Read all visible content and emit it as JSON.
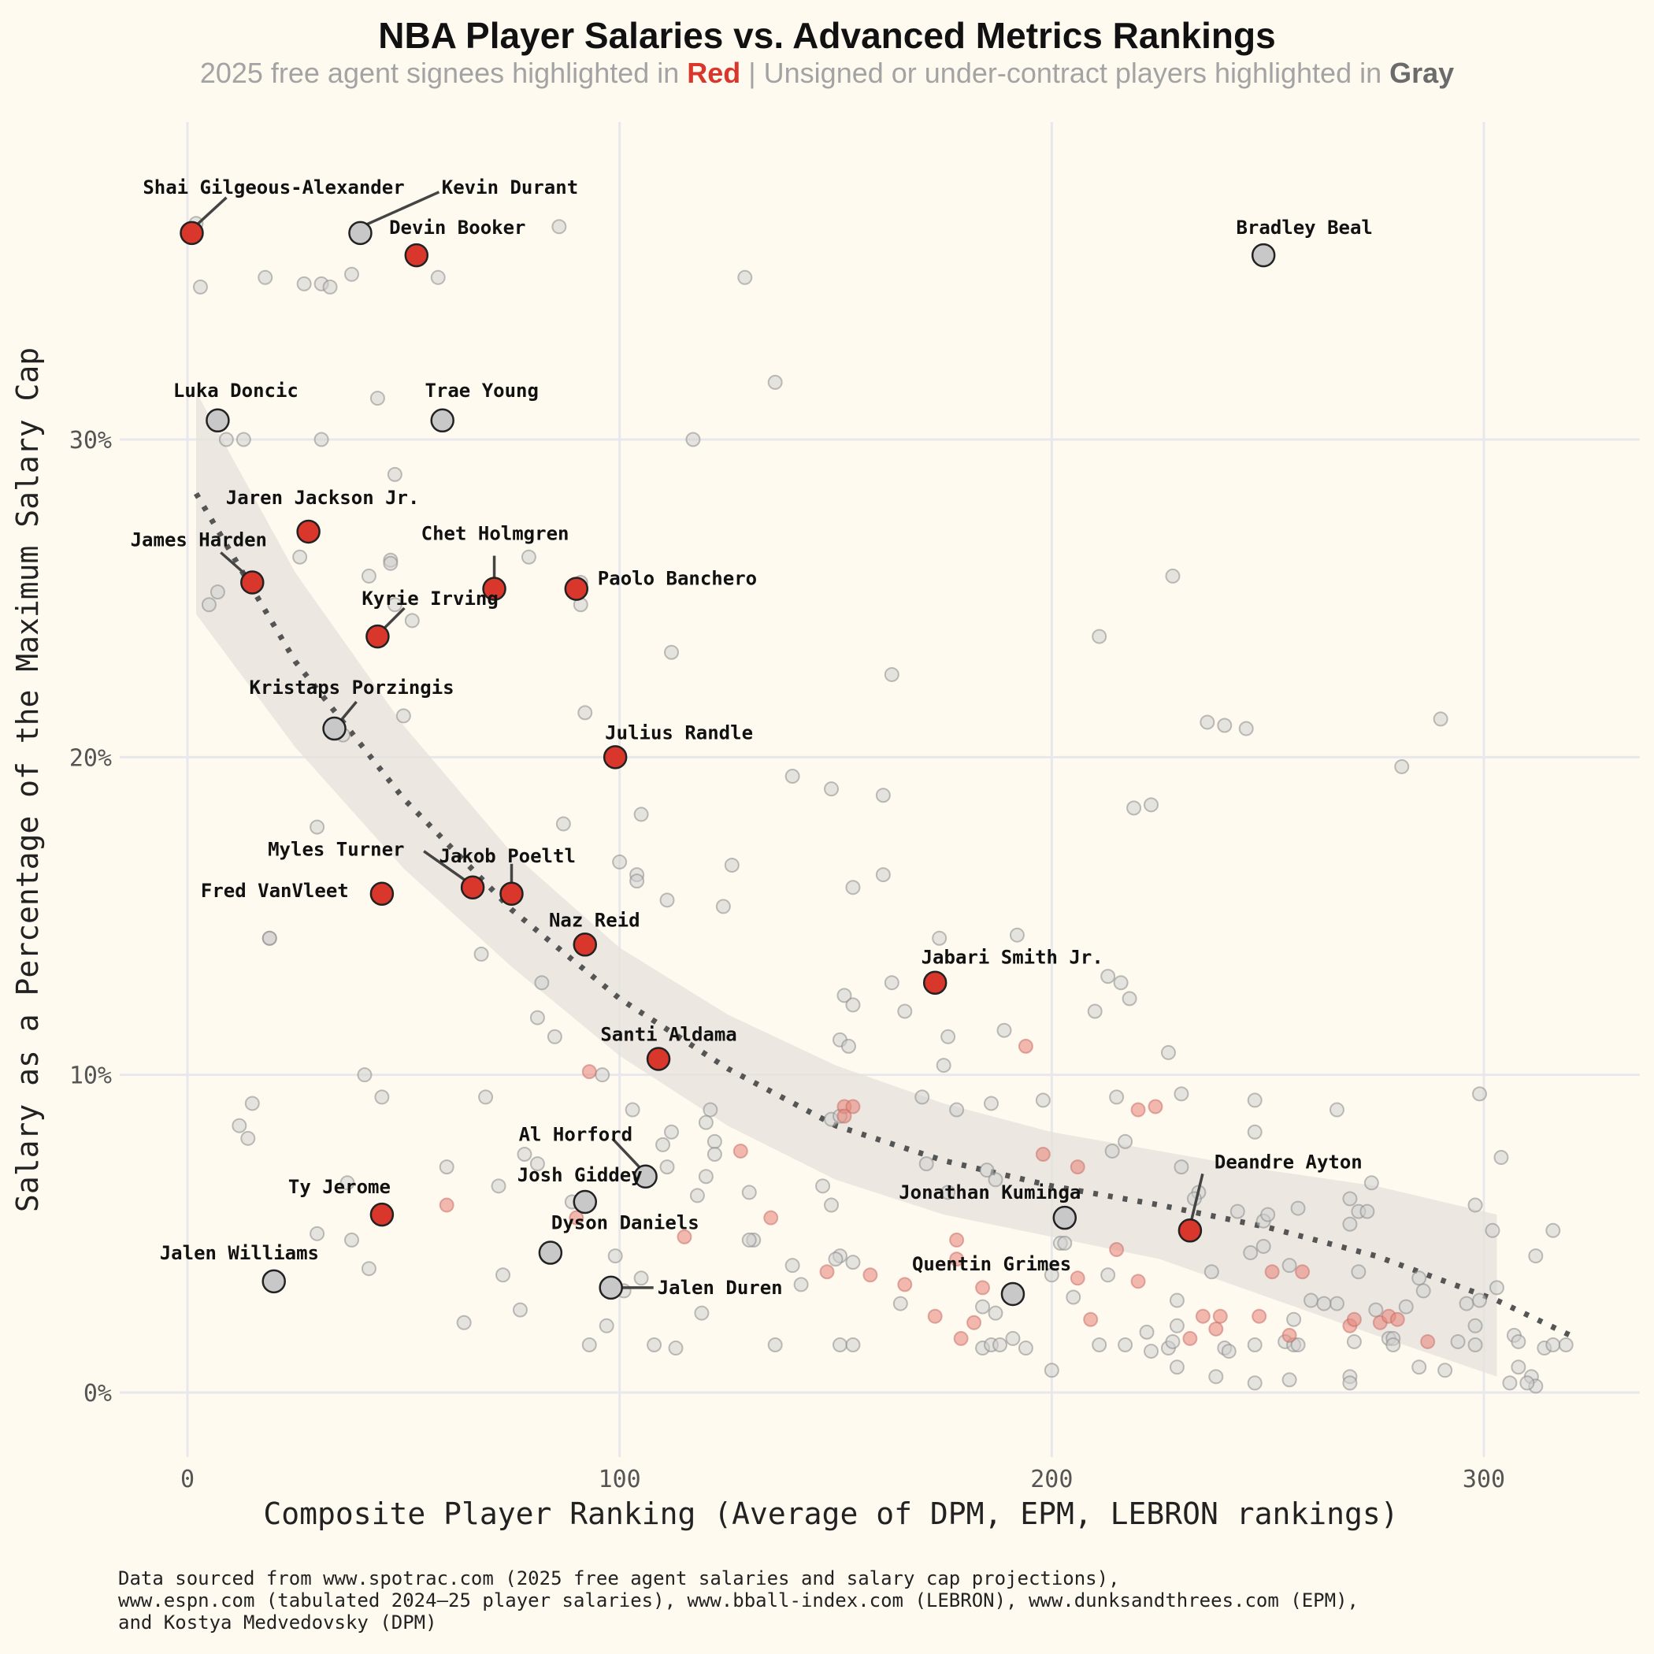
{
  "title": "NBA Player Salaries vs. Advanced Metrics Rankings",
  "subtitle": {
    "prefix": "2025 free agent signees highlighted in ",
    "red_word": "Red",
    "middle": " | Unsigned or under-contract players highlighted in ",
    "gray_word": "Gray"
  },
  "caption": [
    "Data sourced from www.spotrac.com (2025 free agent salaries and salary cap projections),",
    "www.espn.com (tabulated 2024–25 player salaries), www.bball-index.com (LEBRON), www.dunksandthrees.com (EPM),",
    "and Kostya Medvedovsky (DPM)"
  ],
  "colors": {
    "background": "#fffaf0",
    "red": "#d9372b",
    "gray": "#c8c8c8",
    "grid": "#e8e8ec",
    "trend": "#555555",
    "band": "#e6e2dc"
  },
  "chart_data": {
    "type": "scatter",
    "xlabel": "Composite Player Ranking (Average of DPM, EPM, LEBRON rankings)",
    "ylabel": "Salary as a Percentage of the Maximum Salary Cap",
    "xlim": [
      -15,
      335
    ],
    "ylim": [
      -2.5,
      40
    ],
    "xticks": [
      0,
      100,
      200,
      300
    ],
    "yticks": [
      0,
      10,
      20,
      30
    ],
    "ytick_labels": [
      "0%",
      "10%",
      "20%",
      "30%"
    ],
    "grid": true,
    "trend": {
      "type": "loess",
      "x": [
        2,
        25,
        50,
        75,
        100,
        125,
        150,
        175,
        200,
        225,
        250,
        275,
        303,
        320
      ],
      "y": [
        28.3,
        23.0,
        18.7,
        15.2,
        12.4,
        10.2,
        8.4,
        7.3,
        6.5,
        5.9,
        5.2,
        4.3,
        2.9,
        1.8
      ],
      "band_x": [
        2,
        25,
        50,
        75,
        100,
        125,
        150,
        175,
        200,
        225,
        250,
        275,
        303
      ],
      "band_lower": [
        24.5,
        20.3,
        16.5,
        13.4,
        10.6,
        8.4,
        6.7,
        5.6,
        4.9,
        4.2,
        3.0,
        1.8,
        0.5
      ],
      "band_upper": [
        31.5,
        25.8,
        21.0,
        17.0,
        14.0,
        11.9,
        10.3,
        9.1,
        8.2,
        7.6,
        7.0,
        6.5,
        5.6
      ]
    },
    "highlighted": [
      {
        "name": "Shai Gilgeous-Alexander",
        "x": 1,
        "y": 36.5,
        "group": "red"
      },
      {
        "name": "Kevin Durant",
        "x": 40,
        "y": 36.5,
        "group": "gray"
      },
      {
        "name": "Devin Booker",
        "x": 53,
        "y": 35.8,
        "group": "red"
      },
      {
        "name": "Bradley Beal",
        "x": 249,
        "y": 35.8,
        "group": "gray"
      },
      {
        "name": "Luka Doncic",
        "x": 7,
        "y": 30.6,
        "group": "gray"
      },
      {
        "name": "Trae Young",
        "x": 59,
        "y": 30.6,
        "group": "gray"
      },
      {
        "name": "Jaren Jackson Jr.",
        "x": 28,
        "y": 27.1,
        "group": "red"
      },
      {
        "name": "James Harden",
        "x": 15,
        "y": 25.5,
        "group": "red"
      },
      {
        "name": "Chet Holmgren",
        "x": 71,
        "y": 25.3,
        "group": "red"
      },
      {
        "name": "Paolo Banchero",
        "x": 90,
        "y": 25.3,
        "group": "red"
      },
      {
        "name": "Kyrie Irving",
        "x": 44,
        "y": 23.8,
        "group": "red"
      },
      {
        "name": "Kristaps Porzingis",
        "x": 34,
        "y": 20.9,
        "group": "gray"
      },
      {
        "name": "Julius Randle",
        "x": 99,
        "y": 20.0,
        "group": "red"
      },
      {
        "name": "Myles Turner",
        "x": 66,
        "y": 15.9,
        "group": "red"
      },
      {
        "name": "Jakob Poeltl",
        "x": 75,
        "y": 15.7,
        "group": "red"
      },
      {
        "name": "Fred VanVleet",
        "x": 45,
        "y": 15.7,
        "group": "red"
      },
      {
        "name": "Naz Reid",
        "x": 92,
        "y": 14.1,
        "group": "red"
      },
      {
        "name": "Jabari Smith Jr.",
        "x": 173,
        "y": 12.9,
        "group": "red"
      },
      {
        "name": "Santi Aldama",
        "x": 109,
        "y": 10.5,
        "group": "red"
      },
      {
        "name": "Al Horford",
        "x": 106,
        "y": 6.8,
        "group": "gray"
      },
      {
        "name": "Deandre Ayton",
        "x": 232,
        "y": 5.1,
        "group": "red"
      },
      {
        "name": "Jonathan Kuminga",
        "x": 203,
        "y": 5.5,
        "group": "gray"
      },
      {
        "name": "Josh Giddey",
        "x": 92,
        "y": 6.0,
        "group": "gray"
      },
      {
        "name": "Ty Jerome",
        "x": 45,
        "y": 5.6,
        "group": "red"
      },
      {
        "name": "Dyson Daniels",
        "x": 84,
        "y": 4.4,
        "group": "gray"
      },
      {
        "name": "Jalen Williams",
        "x": 20,
        "y": 3.5,
        "group": "gray"
      },
      {
        "name": "Jalen Duren",
        "x": 98,
        "y": 3.3,
        "group": "gray"
      },
      {
        "name": "Quentin Grimes",
        "x": 191,
        "y": 3.1,
        "group": "gray"
      }
    ],
    "background_points": {
      "gray": [
        [
          2,
          36.8
        ],
        [
          3,
          34.8
        ],
        [
          18,
          35.1
        ],
        [
          27,
          34.9
        ],
        [
          31,
          34.9
        ],
        [
          33,
          34.8
        ],
        [
          38,
          35.2
        ],
        [
          58,
          35.1
        ],
        [
          86,
          36.7
        ],
        [
          129,
          35.1
        ],
        [
          136,
          31.8
        ],
        [
          44,
          31.3
        ],
        [
          9,
          30.0
        ],
        [
          13,
          30.0
        ],
        [
          31,
          30.0
        ],
        [
          117,
          30.0
        ],
        [
          48,
          28.9
        ],
        [
          26,
          26.3
        ],
        [
          79,
          26.3
        ],
        [
          47,
          26.2
        ],
        [
          47,
          26.1
        ],
        [
          42,
          25.7
        ],
        [
          7,
          25.2
        ],
        [
          5,
          24.8
        ],
        [
          91,
          25.5
        ],
        [
          91,
          24.8
        ],
        [
          48,
          24.8
        ],
        [
          52,
          24.3
        ],
        [
          228,
          25.7
        ],
        [
          112,
          23.3
        ],
        [
          163,
          22.6
        ],
        [
          211,
          23.8
        ],
        [
          92,
          21.4
        ],
        [
          50,
          21.3
        ],
        [
          36,
          20.7
        ],
        [
          236,
          21.1
        ],
        [
          240,
          21.0
        ],
        [
          245,
          20.9
        ],
        [
          290,
          21.2
        ],
        [
          281,
          19.7
        ],
        [
          140,
          19.4
        ],
        [
          149,
          19.0
        ],
        [
          161,
          18.8
        ],
        [
          219,
          18.4
        ],
        [
          223,
          18.5
        ],
        [
          105,
          18.2
        ],
        [
          87,
          17.9
        ],
        [
          30,
          17.8
        ],
        [
          100,
          16.7
        ],
        [
          104,
          16.3
        ],
        [
          104,
          16.1
        ],
        [
          126,
          16.6
        ],
        [
          161,
          16.3
        ],
        [
          154,
          15.9
        ],
        [
          111,
          15.5
        ],
        [
          124,
          15.3
        ],
        [
          19,
          14.3
        ],
        [
          19,
          14.3
        ],
        [
          68,
          13.8
        ],
        [
          174,
          14.3
        ],
        [
          192,
          14.4
        ],
        [
          82,
          12.9
        ],
        [
          163,
          12.9
        ],
        [
          213,
          13.1
        ],
        [
          216,
          12.9
        ],
        [
          218,
          12.4
        ],
        [
          152,
          12.5
        ],
        [
          154,
          12.2
        ],
        [
          166,
          12.0
        ],
        [
          210,
          12.0
        ],
        [
          81,
          11.8
        ],
        [
          85,
          11.2
        ],
        [
          176,
          11.2
        ],
        [
          189,
          11.4
        ],
        [
          151,
          11.1
        ],
        [
          153,
          10.9
        ],
        [
          227,
          10.7
        ],
        [
          175,
          10.3
        ],
        [
          41,
          10.0
        ],
        [
          96,
          10.0
        ],
        [
          230,
          9.4
        ],
        [
          247,
          9.2
        ],
        [
          299,
          9.4
        ],
        [
          15,
          9.1
        ],
        [
          45,
          9.3
        ],
        [
          69,
          9.3
        ],
        [
          103,
          8.9
        ],
        [
          121,
          8.9
        ],
        [
          170,
          9.3
        ],
        [
          186,
          9.1
        ],
        [
          198,
          9.2
        ],
        [
          215,
          9.3
        ],
        [
          266,
          8.9
        ],
        [
          12,
          8.4
        ],
        [
          14,
          8.0
        ],
        [
          149,
          8.6
        ],
        [
          151,
          8.7
        ],
        [
          178,
          8.9
        ],
        [
          247,
          8.2
        ],
        [
          112,
          8.2
        ],
        [
          110,
          7.8
        ],
        [
          122,
          7.9
        ],
        [
          120,
          8.5
        ],
        [
          122,
          7.5
        ],
        [
          78,
          7.5
        ],
        [
          81,
          7.2
        ],
        [
          111,
          7.1
        ],
        [
          171,
          7.2
        ],
        [
          185,
          7.0
        ],
        [
          187,
          6.7
        ],
        [
          214,
          7.6
        ],
        [
          217,
          7.9
        ],
        [
          304,
          7.4
        ],
        [
          230,
          7.1
        ],
        [
          120,
          6.8
        ],
        [
          130,
          6.3
        ],
        [
          147,
          6.5
        ],
        [
          72,
          6.5
        ],
        [
          37,
          6.6
        ],
        [
          60,
          7.1
        ],
        [
          118,
          6.2
        ],
        [
          176,
          6.3
        ],
        [
          274,
          6.6
        ],
        [
          269,
          6.1
        ],
        [
          234,
          6.3
        ],
        [
          233,
          6.1
        ],
        [
          89,
          6.0
        ],
        [
          149,
          5.9
        ],
        [
          257,
          5.8
        ],
        [
          243,
          5.7
        ],
        [
          271,
          5.7
        ],
        [
          273,
          5.7
        ],
        [
          298,
          5.9
        ],
        [
          249,
          5.4
        ],
        [
          250,
          5.6
        ],
        [
          269,
          5.3
        ],
        [
          302,
          5.1
        ],
        [
          316,
          5.1
        ],
        [
          30,
          5.0
        ],
        [
          38,
          4.8
        ],
        [
          131,
          4.8
        ],
        [
          130,
          4.8
        ],
        [
          202,
          4.7
        ],
        [
          203,
          4.7
        ],
        [
          249,
          4.6
        ],
        [
          271,
          3.8
        ],
        [
          246,
          4.4
        ],
        [
          151,
          4.3
        ],
        [
          154,
          4.1
        ],
        [
          150,
          4.2
        ],
        [
          312,
          4.3
        ],
        [
          99,
          4.3
        ],
        [
          105,
          3.6
        ],
        [
          140,
          4.0
        ],
        [
          142,
          3.4
        ],
        [
          200,
          3.7
        ],
        [
          205,
          3.0
        ],
        [
          213,
          3.7
        ],
        [
          237,
          3.8
        ],
        [
          255,
          4.0
        ],
        [
          285,
          3.6
        ],
        [
          296,
          2.8
        ],
        [
          299,
          2.9
        ],
        [
          303,
          3.3
        ],
        [
          42,
          3.9
        ],
        [
          73,
          3.7
        ],
        [
          77,
          2.6
        ],
        [
          101,
          3.2
        ],
        [
          119,
          2.5
        ],
        [
          165,
          2.8
        ],
        [
          184,
          2.7
        ],
        [
          187,
          2.5
        ],
        [
          229,
          2.9
        ],
        [
          260,
          2.9
        ],
        [
          266,
          2.8
        ],
        [
          275,
          2.6
        ],
        [
          282,
          2.7
        ],
        [
          286,
          3.2
        ],
        [
          64,
          2.2
        ],
        [
          97,
          2.1
        ],
        [
          93,
          1.5
        ],
        [
          108,
          1.5
        ],
        [
          113,
          1.4
        ],
        [
          136,
          1.5
        ],
        [
          151,
          1.5
        ],
        [
          154,
          1.5
        ],
        [
          184,
          1.4
        ],
        [
          186,
          1.5
        ],
        [
          188,
          1.5
        ],
        [
          191,
          1.7
        ],
        [
          194,
          1.4
        ],
        [
          200,
          0.7
        ],
        [
          211,
          1.5
        ],
        [
          217,
          1.5
        ],
        [
          222,
          1.9
        ],
        [
          223,
          1.3
        ],
        [
          227,
          1.4
        ],
        [
          228,
          1.6
        ],
        [
          229,
          2.1
        ],
        [
          229,
          0.8
        ],
        [
          238,
          0.5
        ],
        [
          240,
          1.4
        ],
        [
          241,
          1.3
        ],
        [
          247,
          1.5
        ],
        [
          247,
          0.3
        ],
        [
          254,
          1.6
        ],
        [
          256,
          2.3
        ],
        [
          256,
          1.5
        ],
        [
          257,
          1.5
        ],
        [
          255,
          0.4
        ],
        [
          263,
          2.8
        ],
        [
          269,
          0.5
        ],
        [
          269,
          0.3
        ],
        [
          270,
          1.6
        ],
        [
          278,
          1.7
        ],
        [
          279,
          1.7
        ],
        [
          279,
          1.5
        ],
        [
          285,
          0.8
        ],
        [
          291,
          0.7
        ],
        [
          294,
          1.6
        ],
        [
          298,
          1.5
        ],
        [
          298,
          2.1
        ],
        [
          307,
          1.8
        ],
        [
          308,
          0.8
        ],
        [
          308,
          1.6
        ],
        [
          311,
          0.5
        ],
        [
          312,
          0.2
        ],
        [
          310,
          0.3
        ],
        [
          314,
          1.4
        ],
        [
          316,
          1.5
        ],
        [
          319,
          1.5
        ],
        [
          306,
          0.3
        ]
      ],
      "red": [
        [
          93,
          10.1
        ],
        [
          152,
          9.0
        ],
        [
          154,
          9.0
        ],
        [
          152,
          8.7
        ],
        [
          220,
          8.9
        ],
        [
          224,
          9.0
        ],
        [
          194,
          10.9
        ],
        [
          198,
          7.5
        ],
        [
          206,
          7.1
        ],
        [
          128,
          7.6
        ],
        [
          135,
          5.5
        ],
        [
          115,
          4.9
        ],
        [
          148,
          3.8
        ],
        [
          158,
          3.7
        ],
        [
          166,
          3.4
        ],
        [
          178,
          4.8
        ],
        [
          178,
          4.2
        ],
        [
          184,
          3.3
        ],
        [
          206,
          3.6
        ],
        [
          215,
          4.5
        ],
        [
          220,
          3.5
        ],
        [
          251,
          3.8
        ],
        [
          258,
          3.8
        ],
        [
          90,
          5.5
        ],
        [
          60,
          5.9
        ],
        [
          173,
          2.4
        ],
        [
          182,
          2.2
        ],
        [
          179,
          1.7
        ],
        [
          209,
          2.3
        ],
        [
          232,
          1.7
        ],
        [
          235,
          2.4
        ],
        [
          238,
          2.0
        ],
        [
          239,
          2.4
        ],
        [
          248,
          2.4
        ],
        [
          255,
          1.8
        ],
        [
          269,
          2.1
        ],
        [
          270,
          2.3
        ],
        [
          276,
          2.2
        ],
        [
          278,
          2.4
        ],
        [
          280,
          2.3
        ],
        [
          287,
          1.6
        ]
      ]
    }
  }
}
